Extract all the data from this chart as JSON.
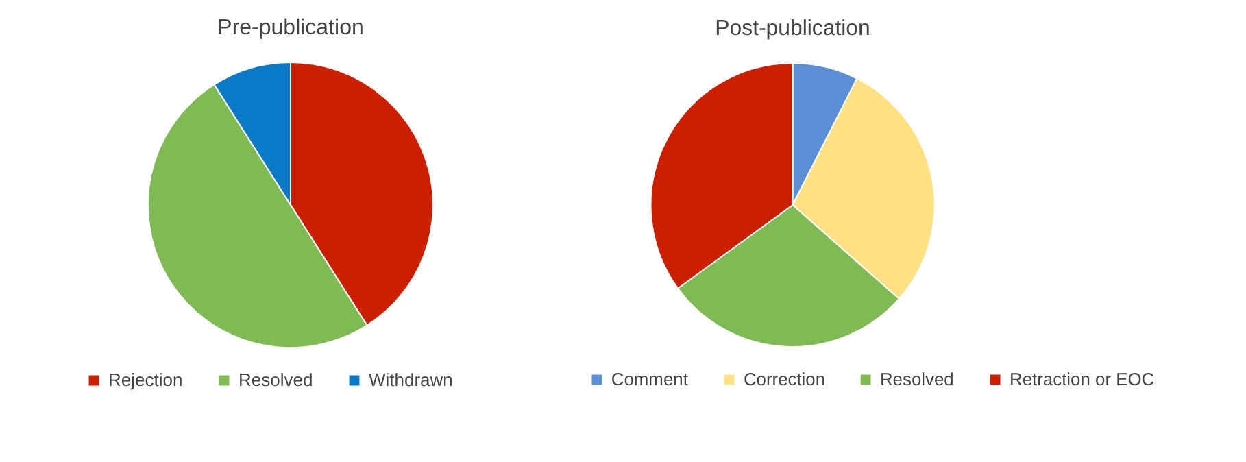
{
  "chart_data": [
    {
      "type": "pie",
      "title": "Pre-publication",
      "categories": [
        "Rejection",
        "Resolved",
        "Withdrawn"
      ],
      "values": [
        41,
        50,
        9
      ],
      "colors": [
        "#cc1f00",
        "#7fba55",
        "#0a7ac8"
      ],
      "legend": "bottom"
    },
    {
      "type": "pie",
      "title": "Post-publication",
      "categories": [
        "Comment",
        "Correction",
        "Resolved",
        "Retraction or EOC"
      ],
      "values": [
        7.5,
        29,
        28.5,
        35
      ],
      "colors": [
        "#5b8fd6",
        "#ffe083",
        "#7fba55",
        "#cc1f00"
      ],
      "legend": "bottom"
    }
  ]
}
